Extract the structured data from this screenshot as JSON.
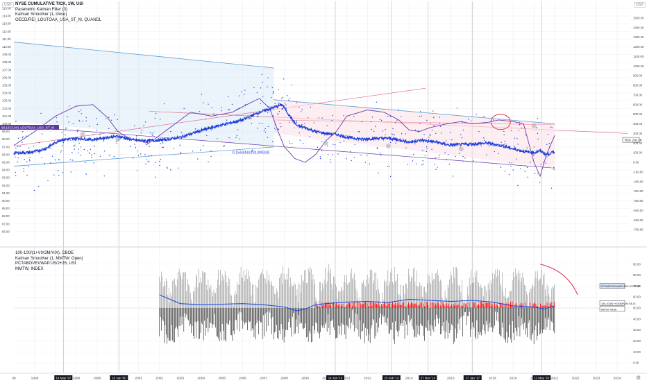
{
  "currency_badge": "USD",
  "top_legend": [
    "NYSE CUMULATIVE TICK, 1W, USI",
    "Parametric Kalman Filter (3)",
    "Kalman Smoother (1, close)",
    "OECD/REI_LOUTOAA_USA_ST_M, QUANDL"
  ],
  "bottom_legend": [
    "100-100/(1+VIX3M/VIX), CBOE",
    "Kalman Smoother (1, MMTW: Open)",
    "PCTABOVEVWAP.US/2+25, USI",
    "MMTW, INDEX"
  ],
  "colors": {
    "tick_series": "#1e40d8",
    "kalman": "#6a3aa8",
    "upper_channel": "#5b9bd5",
    "lower_channel": "#e06a8a",
    "channel_fill_top": "#dbeaf8",
    "channel_fill_bottom": "#fbe3e8",
    "annotation": "#e0405a",
    "positive_hist": "#ff0000",
    "negative_hist": "#000000",
    "oscillator_line": "#2050e0",
    "grid": "#ebedf1"
  },
  "chart_data": [
    {
      "type": "line",
      "panel": "top",
      "title": "NYSE CUMULATIVE TICK, 1W, USI",
      "x_range": [
        1995,
        2024.6
      ],
      "ylim_left": [
        85,
        115
      ],
      "ylim_right": [
        -800,
        1600
      ],
      "left_ticks": [
        "86.00",
        "87.00",
        "88.00",
        "89.00",
        "90.00",
        "91.00",
        "92.00",
        "93.00",
        "94.00",
        "95.00",
        "96.00",
        "97.00",
        "98.00",
        "99.00",
        "100.00",
        "101.00",
        "102.00",
        "103.00",
        "104.00",
        "105.00",
        "106.00",
        "107.00",
        "108.00",
        "109.00",
        "110.00",
        "111.00",
        "112.00",
        "113.00",
        "114.00",
        "115.00"
      ],
      "right_ticks": [
        "-700.00",
        "-600.00",
        "-500.00",
        "-400.00",
        "-300.00",
        "-200.00",
        "-100.00",
        "0.00",
        "100.00",
        "200.00",
        "300.00",
        "400.00",
        "500.00",
        "600.00",
        "700.00",
        "800.00",
        "900.00",
        "1000.00",
        "1100.00",
        "1200.00",
        "1300.00",
        "1400.00",
        "1500.00"
      ],
      "series": [
        {
          "name": "NYSE CUMULATIVE TICK",
          "x": [
            1995.0,
            1995.8,
            1996.5,
            1997.2,
            1998.0,
            1998.8,
            1999.5,
            2000.0,
            2000.8,
            2001.5,
            2002.3,
            2003.0,
            2004.0,
            2005.0,
            2006.0,
            2006.8,
            2007.5,
            2007.9,
            2008.2,
            2008.6,
            2009.0,
            2009.5,
            2010.0,
            2010.5,
            2011.0,
            2011.8,
            2012.5,
            2013.0,
            2013.6,
            2014.0,
            2014.6,
            2015.3,
            2015.9,
            2016.5,
            2017.0,
            2017.8,
            2018.5,
            2019.0,
            2019.6,
            2020.0,
            2020.3,
            2020.6,
            2021.0
          ],
          "y": [
            97,
            102,
            140,
            230,
            250,
            235,
            260,
            270,
            230,
            225,
            235,
            260,
            330,
            390,
            440,
            520,
            570,
            600,
            500,
            380,
            360,
            320,
            300,
            290,
            260,
            240,
            250,
            250,
            230,
            210,
            230,
            210,
            180,
            185,
            190,
            200,
            170,
            140,
            110,
            100,
            120,
            80,
            110
          ]
        },
        {
          "name": "Kalman Smoother",
          "x": [
            1995.0,
            1996.0,
            1997.0,
            1998.0,
            1998.8,
            1999.5,
            2000.0,
            2000.6,
            2001.5,
            2002.5,
            2003.5,
            2004.5,
            2005.5,
            2006.2,
            2006.8,
            2007.3,
            2007.7,
            2008.0,
            2008.5,
            2009.0,
            2009.5,
            2010.0,
            2010.5,
            2011.0,
            2012.0,
            2012.8,
            2013.5,
            2014.0,
            2014.5,
            2015.0,
            2015.8,
            2016.5,
            2017.0,
            2017.8,
            2018.3,
            2019.0,
            2019.5,
            2020.0,
            2020.3,
            2020.6,
            2021.0
          ],
          "y": [
            97.2,
            99,
            101,
            102.3,
            102.5,
            100.8,
            99,
            98,
            97.5,
            99.5,
            101.5,
            101,
            101.5,
            102.5,
            103.3,
            102,
            99,
            97,
            95.5,
            95,
            96,
            97.8,
            99,
            101,
            101.8,
            101.5,
            100.5,
            99.2,
            99,
            99.5,
            100,
            100.3,
            100,
            100.2,
            100.5,
            100.3,
            100,
            95,
            93.2,
            96,
            98.5
          ]
        }
      ],
      "scatter_y_range": [
        -480,
        1350
      ],
      "annotations": [
        "0.1563439191309338"
      ],
      "flags": [
        "19 May '97",
        "18 Jan '00",
        "27 Nov '14"
      ]
    },
    {
      "type": "line",
      "panel": "bottom",
      "ylim": [
        -5,
        100
      ],
      "ticks": [
        "0.00",
        "10.00",
        "20.00",
        "30.00",
        "40.00",
        "50.00",
        "60.00",
        "70.00",
        "80.00",
        "90.00"
      ],
      "series": [
        {
          "name": "PCTABOVEVWAP.US/2+25",
          "last": "69.88"
        },
        {
          "name": "100-100/(1+VIX3M/VIX)",
          "last": "54.24"
        },
        {
          "name": "MMTW",
          "last": "48.86"
        }
      ],
      "oscillator": {
        "x": [
          2002.0,
          2003.0,
          2004.0,
          2005.0,
          2006.0,
          2007.0,
          2008.0,
          2008.6,
          2009.0,
          2009.5,
          2010.0,
          2011.0,
          2012.0,
          2013.0,
          2014.0,
          2015.0,
          2016.0,
          2017.0,
          2018.0,
          2019.0,
          2020.0,
          2020.5,
          2021.0
        ],
        "y": [
          62,
          54,
          53,
          53.5,
          54,
          53,
          51,
          47.5,
          49,
          53,
          54,
          55.5,
          56,
          55,
          58,
          57,
          56,
          57,
          55.5,
          52,
          51,
          49,
          52
        ]
      }
    }
  ],
  "x_axis": {
    "labels": [
      "90",
      "1996",
      "19 May '97",
      "1998",
      "1999",
      "18 Jan '00",
      "2001",
      "2002",
      "2003",
      "2004",
      "2005",
      "2006",
      "2007",
      "2008",
      "2009",
      "2010",
      "14 Jun '10",
      "2011",
      "2012",
      "23 Feb '13",
      "2014",
      "27 Nov '14",
      "2016",
      "17 Jan '17",
      "2018",
      "2019",
      "2020",
      "11 May '20",
      "2021",
      "2022",
      "2023",
      "2024"
    ],
    "ticks": [
      "1996",
      "1997",
      "1998",
      "1999",
      "2000",
      "2001",
      "2002",
      "2003",
      "2004",
      "2005",
      "2006",
      "2007",
      "2008",
      "2009",
      "2010",
      "2011",
      "2012",
      "2013",
      "2014",
      "2015",
      "2016",
      "2017",
      "2018",
      "2019",
      "2020",
      "2021",
      "2022",
      "2023",
      "2024"
    ]
  },
  "price_tags": {
    "left_label": "99.18 (3.04), LOUTOAA_USA_ST_M",
    "tick_label": "TICK",
    "tick_value": "230.28"
  }
}
